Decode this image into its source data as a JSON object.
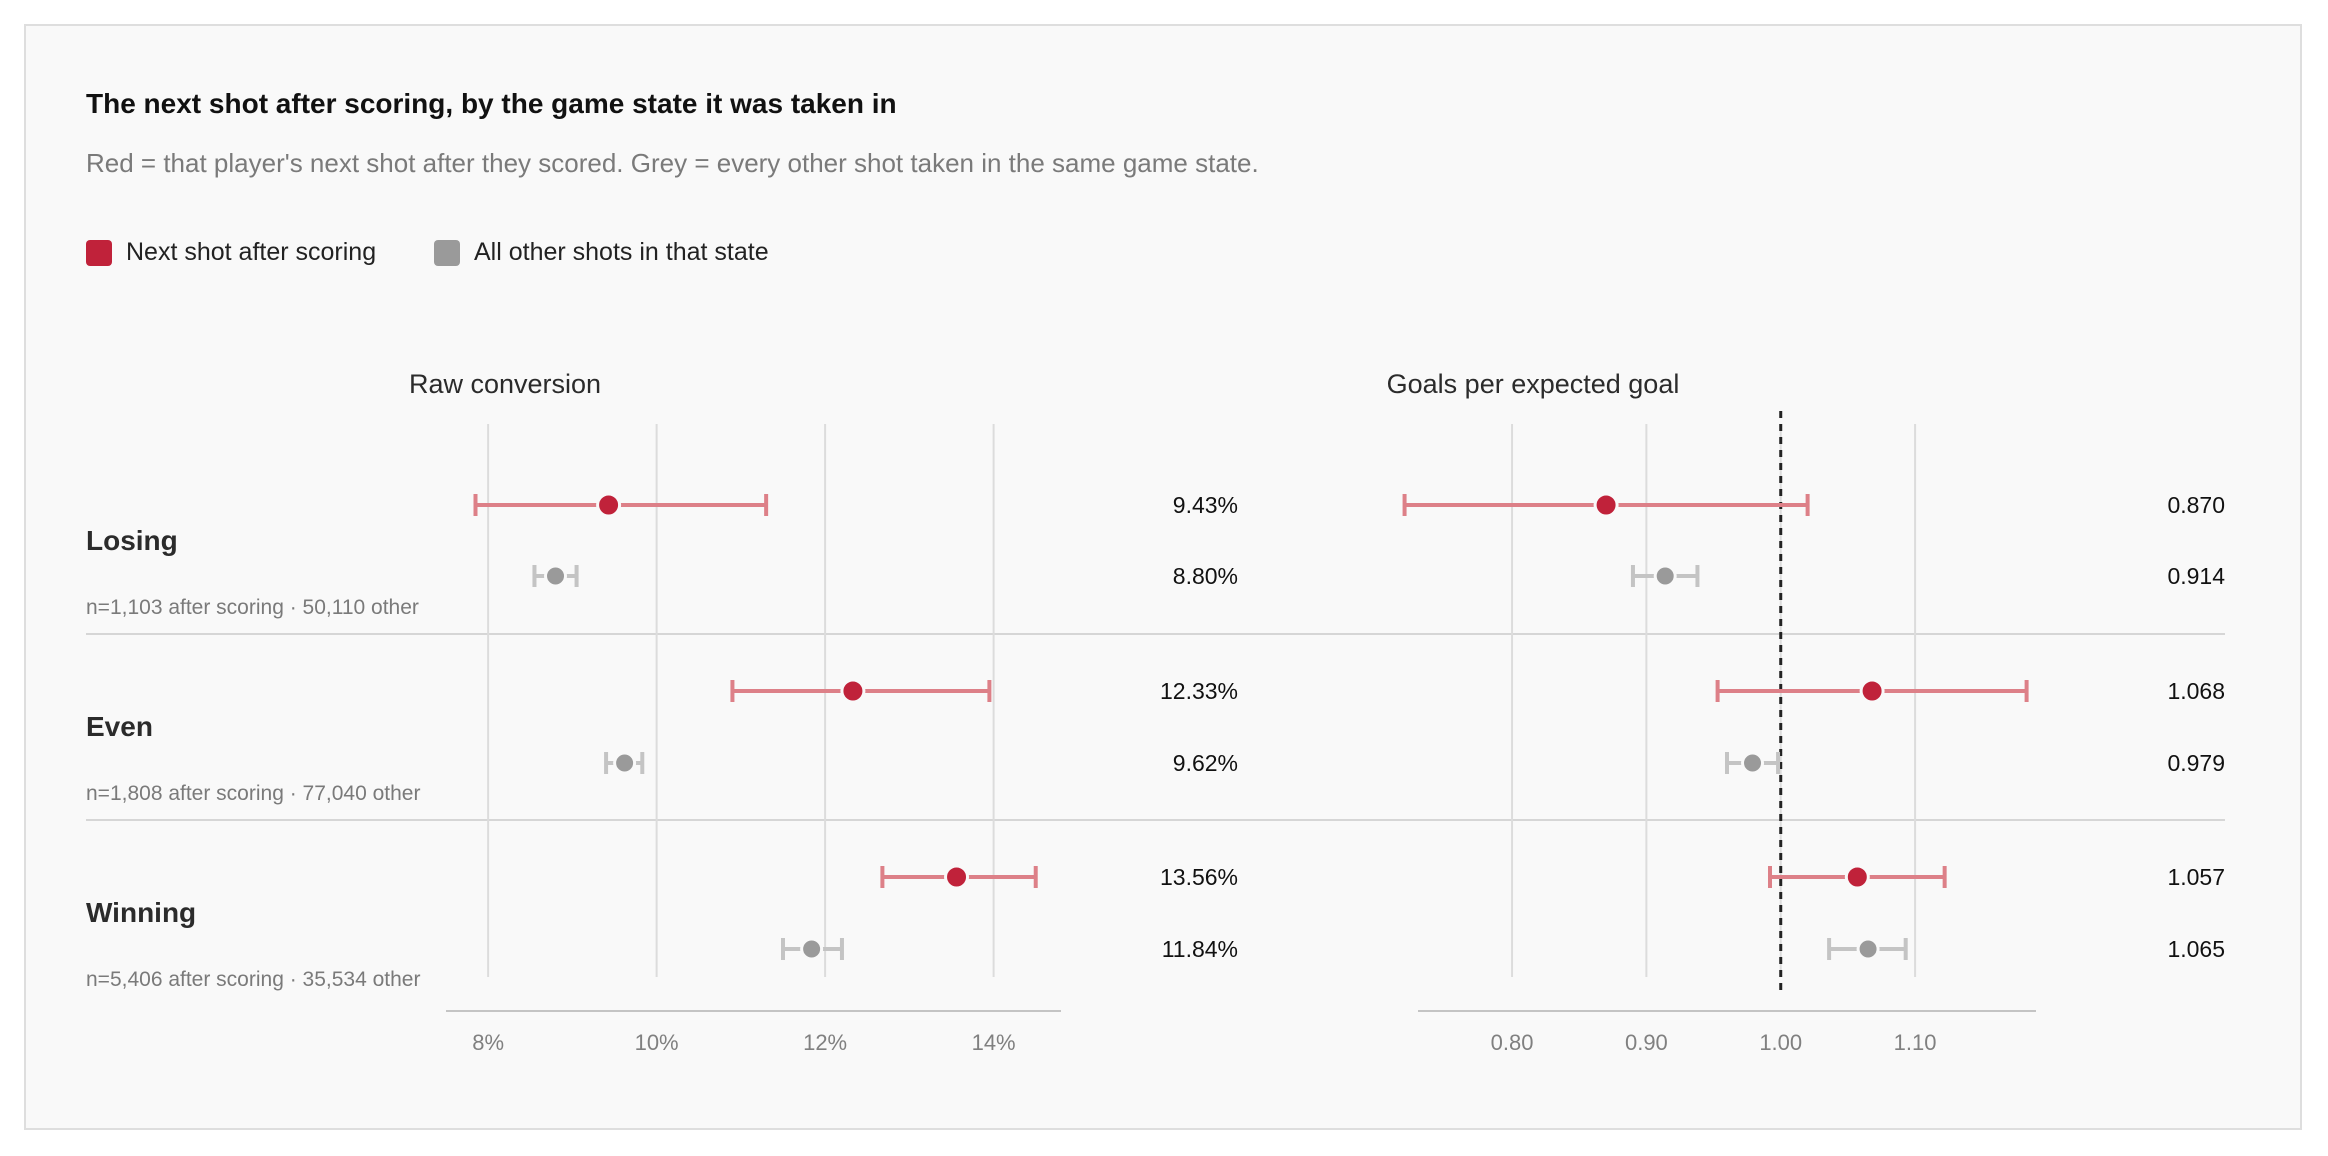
{
  "title": "The next shot after scoring, by the game state it was taken in",
  "subtitle": "Red = that player's next shot after they scored. Grey = every other shot taken in the same game state.",
  "colors": {
    "red": "#c0223a",
    "red_bar": "#dd8088",
    "grey": "#9a9a9a",
    "grey_bar": "#c4c4c4"
  },
  "legend": [
    {
      "label": "Next shot after scoring",
      "color": "#c0223a"
    },
    {
      "label": "All other shots in that state",
      "color": "#9a9a9a"
    }
  ],
  "chart_data": [
    {
      "type": "scatter",
      "title": "Raw conversion",
      "xlim": [
        7.5,
        14.8
      ],
      "xticks": [
        8,
        10,
        12,
        14
      ],
      "tick_labels": [
        "8%",
        "10%",
        "12%",
        "14%"
      ],
      "rows": [
        {
          "state": "Losing",
          "note": "n=1,103 after scoring · 50,110 other",
          "after": {
            "value": 9.43,
            "low": 7.85,
            "high": 11.3,
            "label": "9.43%"
          },
          "other": {
            "value": 8.8,
            "low": 8.55,
            "high": 9.05,
            "label": "8.80%"
          }
        },
        {
          "state": "Even",
          "note": "n=1,808 after scoring · 77,040 other",
          "after": {
            "value": 12.33,
            "low": 10.9,
            "high": 13.95,
            "label": "12.33%"
          },
          "other": {
            "value": 9.62,
            "low": 9.4,
            "high": 9.83,
            "label": "9.62%"
          }
        },
        {
          "state": "Winning",
          "note": "n=5,406 after scoring · 35,534 other",
          "after": {
            "value": 13.56,
            "low": 12.68,
            "high": 14.5,
            "label": "13.56%"
          },
          "other": {
            "value": 11.84,
            "low": 11.5,
            "high": 12.2,
            "label": "11.84%"
          }
        }
      ]
    },
    {
      "type": "scatter",
      "title": "Goals per expected goal",
      "xlim": [
        0.73,
        1.19
      ],
      "xticks": [
        0.8,
        0.9,
        1.0,
        1.1
      ],
      "tick_labels": [
        "0.80",
        "0.90",
        "1.00",
        "1.10"
      ],
      "reference": 1.0,
      "rows": [
        {
          "state": "Losing",
          "after": {
            "value": 0.87,
            "low": 0.72,
            "high": 1.02,
            "label": "0.870"
          },
          "other": {
            "value": 0.914,
            "low": 0.89,
            "high": 0.938,
            "label": "0.914"
          }
        },
        {
          "state": "Even",
          "after": {
            "value": 1.068,
            "low": 0.953,
            "high": 1.183,
            "label": "1.068"
          },
          "other": {
            "value": 0.979,
            "low": 0.96,
            "high": 0.998,
            "label": "0.979"
          }
        },
        {
          "state": "Winning",
          "after": {
            "value": 1.057,
            "low": 0.992,
            "high": 1.122,
            "label": "1.057"
          },
          "other": {
            "value": 1.065,
            "low": 1.036,
            "high": 1.093,
            "label": "1.065"
          }
        }
      ]
    }
  ]
}
